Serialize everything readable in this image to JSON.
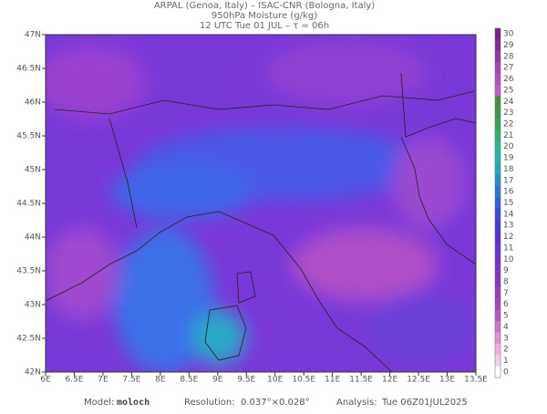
{
  "header": {
    "line1": "ARPAL (Genoa, Italy)  –  ISAC-CNR (Bologna, Italy)",
    "line2": "950hPa Moisture (g/kg)",
    "line3": "12 UTC Tue 01 JUL  –  τ = 06h"
  },
  "axes": {
    "lon": [
      "6E",
      "6.5E",
      "7E",
      "7.5E",
      "8E",
      "8.5E",
      "9E",
      "9.5E",
      "10E",
      "10.5E",
      "11E",
      "11.5E",
      "12E",
      "12.5E",
      "13E",
      "13.5E"
    ],
    "lat": [
      "47N",
      "46.5N",
      "46N",
      "45.5N",
      "45N",
      "44.5N",
      "44N",
      "43.5N",
      "43N",
      "42.5N",
      "42N"
    ]
  },
  "colorbar": {
    "labels": [
      "30",
      "29",
      "28",
      "27",
      "26",
      "25",
      "24",
      "23",
      "22",
      "21",
      "20",
      "19",
      "18",
      "17",
      "16",
      "15",
      "14",
      "13",
      "12",
      "11",
      "10",
      "9",
      "8",
      "7",
      "6",
      "5",
      "4",
      "3",
      "2",
      "1",
      "0"
    ],
    "colors": [
      "#7a1f8a",
      "#8a2a9a",
      "#9a35a8",
      "#aa40b5",
      "#b84cc0",
      "#c458ca",
      "#4a8f3a",
      "#3f9a45",
      "#36a55a",
      "#2eb070",
      "#28b890",
      "#22b8a8",
      "#20a8c0",
      "#2090d0",
      "#2878dc",
      "#3060e4",
      "#3a48e8",
      "#4038e0",
      "#5030dc",
      "#6030d8",
      "#7030d0",
      "#8030cc",
      "#9030c4",
      "#a038c0",
      "#b040bc",
      "#c050c0",
      "#d070cc",
      "#e090d8",
      "#eeb0e4",
      "#f6d0ee",
      "#ffffff"
    ]
  },
  "footer": {
    "model_label": "Model:",
    "model": "moloch",
    "resolution_label": "Resolution:",
    "resolution": "0.037°×0.028°",
    "analysis_label": "Analysis:",
    "analysis": "Tue 06Z01JUL2025"
  }
}
